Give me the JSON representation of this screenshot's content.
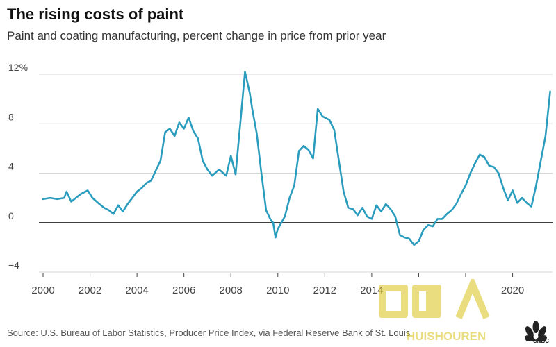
{
  "chart_data": {
    "type": "line",
    "title": "The rising costs of paint",
    "subtitle": "Paint and coating manufacturing, percent change in price from prior year",
    "xlabel": "",
    "ylabel": "",
    "xlim": [
      2000,
      2021.7
    ],
    "ylim": [
      -4,
      12
    ],
    "x_ticks": [
      2000,
      2002,
      2004,
      2006,
      2008,
      2010,
      2012,
      2014,
      2016,
      2018,
      2020
    ],
    "x_tick_labels": [
      "2000",
      "2002",
      "2004",
      "2006",
      "2008",
      "2010",
      "2012",
      "2014",
      "",
      "",
      "2020"
    ],
    "y_ticks": [
      -4,
      0,
      4,
      8,
      12
    ],
    "y_tick_labels": [
      "−4",
      "0",
      "4",
      "8",
      "12%"
    ],
    "grid": true,
    "series": [
      {
        "name": "Paint and coating manufacturing",
        "color": "#2a9dbf",
        "x": [
          2000.0,
          2000.3,
          2000.6,
          2000.9,
          2001.0,
          2001.2,
          2001.4,
          2001.6,
          2001.8,
          2001.9,
          2002.1,
          2002.4,
          2002.6,
          2002.8,
          2003.0,
          2003.2,
          2003.4,
          2003.6,
          2003.8,
          2004.0,
          2004.2,
          2004.4,
          2004.6,
          2004.8,
          2005.0,
          2005.2,
          2005.4,
          2005.6,
          2005.8,
          2006.0,
          2006.2,
          2006.4,
          2006.6,
          2006.8,
          2007.0,
          2007.2,
          2007.5,
          2007.8,
          2008.0,
          2008.2,
          2008.3,
          2008.4,
          2008.6,
          2008.8,
          2008.9,
          2009.1,
          2009.3,
          2009.5,
          2009.7,
          2009.8,
          2009.9,
          2010.0,
          2010.15,
          2010.3,
          2010.5,
          2010.7,
          2010.9,
          2011.1,
          2011.3,
          2011.5,
          2011.7,
          2011.9,
          2012.0,
          2012.2,
          2012.4,
          2012.6,
          2012.8,
          2013.0,
          2013.2,
          2013.4,
          2013.6,
          2013.8,
          2014.0,
          2014.2,
          2014.4,
          2014.6,
          2014.8,
          2015.0,
          2015.2,
          2015.4,
          2015.6,
          2015.8,
          2016.0,
          2016.2,
          2016.4,
          2016.6,
          2016.8,
          2017.0,
          2017.2,
          2017.4,
          2017.6,
          2017.8,
          2018.0,
          2018.2,
          2018.4,
          2018.6,
          2018.8,
          2019.0,
          2019.2,
          2019.4,
          2019.6,
          2019.8,
          2020.0,
          2020.2,
          2020.4,
          2020.6,
          2020.8,
          2021.0,
          2021.2,
          2021.4,
          2021.6
        ],
        "y": [
          1.9,
          2.0,
          1.9,
          2.0,
          2.5,
          1.7,
          2.0,
          2.3,
          2.5,
          2.6,
          2.0,
          1.5,
          1.2,
          1.0,
          0.7,
          1.4,
          0.9,
          1.5,
          2.0,
          2.5,
          2.8,
          3.2,
          3.4,
          4.2,
          5.0,
          7.3,
          7.6,
          7.0,
          8.1,
          7.6,
          8.5,
          7.4,
          6.8,
          5.0,
          4.3,
          3.8,
          4.3,
          3.8,
          5.4,
          3.9,
          6.0,
          8.0,
          12.2,
          10.5,
          9.3,
          7.2,
          4.0,
          1.0,
          0.2,
          0.0,
          -1.2,
          -0.5,
          0.0,
          0.5,
          2.0,
          3.0,
          5.8,
          6.2,
          5.9,
          5.2,
          9.2,
          8.6,
          8.5,
          8.3,
          7.5,
          5.0,
          2.5,
          1.2,
          1.1,
          0.6,
          1.2,
          0.5,
          0.3,
          1.4,
          0.9,
          1.5,
          1.1,
          0.5,
          -1.0,
          -1.2,
          -1.3,
          -1.8,
          -1.5,
          -0.6,
          -0.2,
          -0.3,
          0.3,
          0.3,
          0.7,
          1.0,
          1.5,
          2.3,
          3.0,
          4.0,
          4.8,
          5.5,
          5.3,
          4.6,
          4.5,
          4.0,
          2.8,
          1.8,
          2.6,
          1.6,
          2.0,
          1.6,
          1.3,
          3.0,
          5.0,
          7.0,
          10.6
        ]
      }
    ]
  },
  "source_text": "Source: U.S. Bureau of Labor Statistics, Producer Price Index, via Federal Reserve Bank of St. Louis",
  "logo": {
    "label": "CNBC"
  },
  "watermark": {
    "text": "HUISHOUREN"
  }
}
